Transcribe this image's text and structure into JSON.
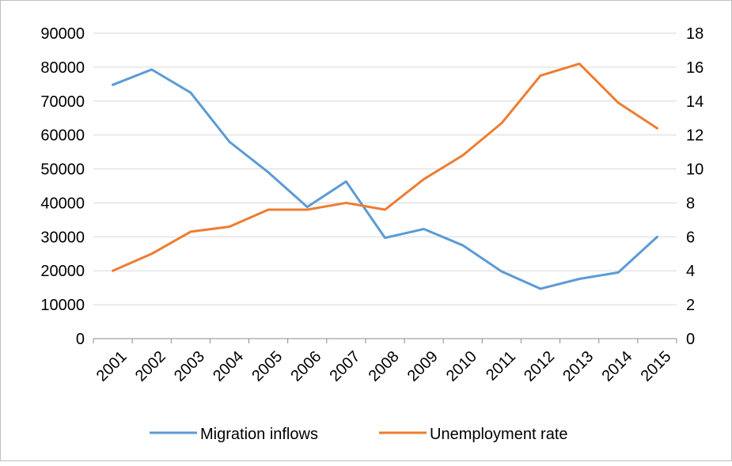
{
  "chart_data": {
    "type": "line",
    "categories": [
      "2001",
      "2002",
      "2003",
      "2004",
      "2005",
      "2006",
      "2007",
      "2008",
      "2009",
      "2010",
      "2011",
      "2012",
      "2013",
      "2014",
      "2015"
    ],
    "series": [
      {
        "name": "Migration inflows",
        "axis": "left",
        "color": "#5b9bd5",
        "values": [
          74800,
          79300,
          72500,
          58000,
          49000,
          38800,
          46300,
          29700,
          32300,
          27500,
          19800,
          14700,
          17600,
          19500,
          30000
        ]
      },
      {
        "name": "Unemployment rate",
        "axis": "right",
        "color": "#ed7d31",
        "values": [
          4.0,
          5.0,
          6.3,
          6.6,
          7.6,
          7.6,
          8.0,
          7.6,
          9.4,
          10.8,
          12.7,
          15.5,
          16.2,
          13.9,
          12.4
        ]
      }
    ],
    "y_left": {
      "min": 0,
      "max": 90000,
      "step": 10000,
      "ticks": [
        "0",
        "10000",
        "20000",
        "30000",
        "40000",
        "50000",
        "60000",
        "70000",
        "80000",
        "90000"
      ]
    },
    "y_right": {
      "min": 0,
      "max": 18,
      "step": 2,
      "ticks": [
        "0",
        "2",
        "4",
        "6",
        "8",
        "10",
        "12",
        "14",
        "16",
        "18"
      ]
    },
    "grid": true,
    "legend_position": "bottom",
    "title": "",
    "xlabel": "",
    "ylabel": ""
  }
}
